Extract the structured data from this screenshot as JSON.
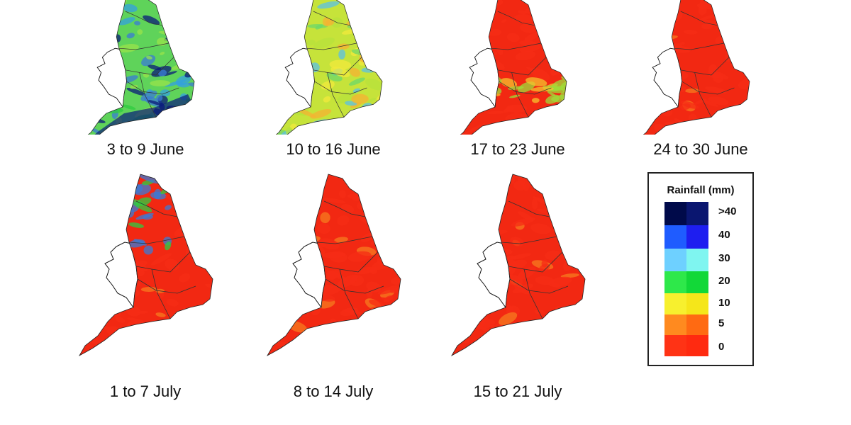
{
  "panels": [
    {
      "caption": "3 to 9 June",
      "pattern": "wet",
      "colors": [
        "#3a7bd5",
        "#2ecc40",
        "#98e34b",
        "#0a1a7a",
        "#33a0e0"
      ],
      "base": "#5fd35a"
    },
    {
      "caption": "10 to 16 June",
      "pattern": "mixed",
      "colors": [
        "#b7e23c",
        "#f2e93c",
        "#f5b233",
        "#6cd86a",
        "#5bc0e6"
      ],
      "base": "#c6e33a"
    },
    {
      "caption": "17 to 23 June",
      "pattern": "dry-south-band",
      "colors": [
        "#f52c15",
        "#f57b1f",
        "#9edc3a",
        "#f5c22e"
      ],
      "base": "#f22812"
    },
    {
      "caption": "24 to 30 June",
      "pattern": "dry",
      "colors": [
        "#f52c15",
        "#f57b1f",
        "#f5a62e"
      ],
      "base": "#f22812"
    },
    {
      "caption": "1 to 7 July",
      "pattern": "dry-north-wet",
      "colors": [
        "#f52c15",
        "#f57b1f",
        "#2ecc40",
        "#3a7bd5"
      ],
      "base": "#f22812"
    },
    {
      "caption": "8 to 14 July",
      "pattern": "dry",
      "colors": [
        "#f52c15",
        "#f57b1f"
      ],
      "base": "#f22812"
    },
    {
      "caption": "15 to 21 July",
      "pattern": "dry",
      "colors": [
        "#f52c15",
        "#f57b1f",
        "#9edc3a"
      ],
      "base": "#f22812"
    }
  ],
  "legend": {
    "title": "Rainfall (mm)",
    "labels": [
      ">40",
      "40",
      "30",
      "20",
      "10",
      "5",
      "0"
    ],
    "bands": [
      [
        "#000a4a",
        "#0a1670"
      ],
      [
        "#1f5cff",
        "#1e1ef0"
      ],
      [
        "#6ed0ff",
        "#7ff5f0"
      ],
      [
        "#2ee84a",
        "#12d838"
      ],
      [
        "#f7f02e",
        "#f5e61a"
      ],
      [
        "#ff8a1f",
        "#ff6a12"
      ],
      [
        "#ff3315",
        "#ff2a10"
      ]
    ]
  }
}
